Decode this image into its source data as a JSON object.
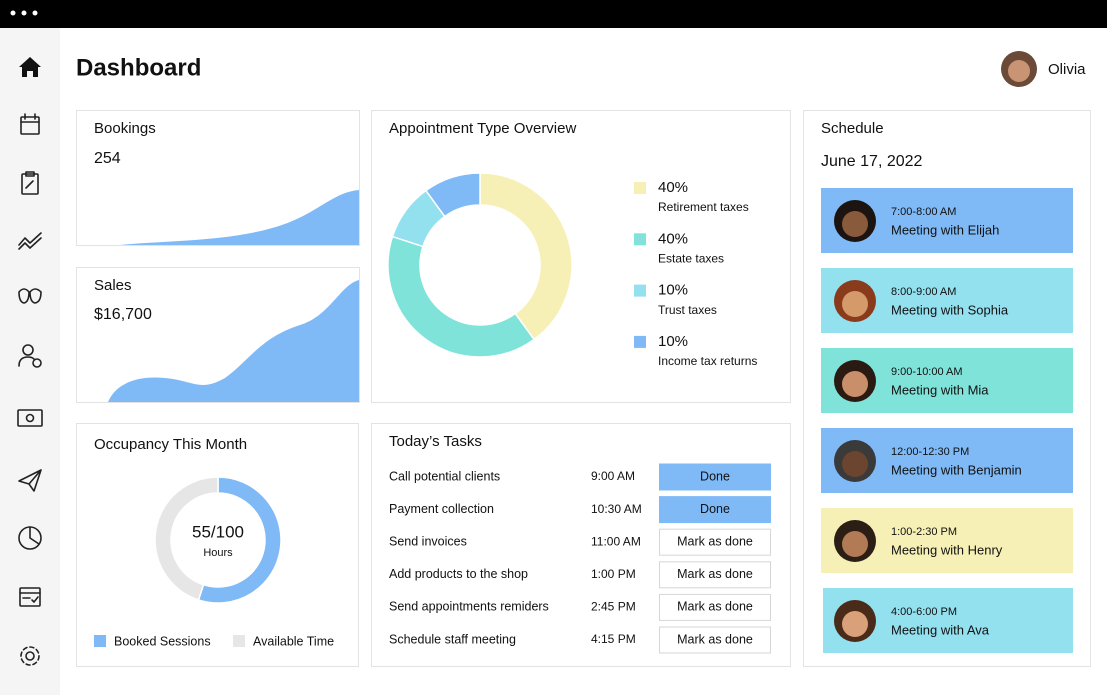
{
  "header": {
    "title": "Dashboard",
    "user": "Olivia"
  },
  "bookings": {
    "title": "Bookings",
    "value": "254"
  },
  "sales": {
    "title": "Sales",
    "value": "$16,700"
  },
  "appointment_overview": {
    "title": "Appointment Type Overview",
    "chart_data": {
      "type": "pie",
      "categories": [
        "Retirement taxes",
        "Estate taxes",
        "Trust taxes",
        "Income tax returns"
      ],
      "values": [
        40,
        40,
        10,
        10
      ],
      "value_labels": [
        "40%",
        "40%",
        "10%",
        "10%"
      ],
      "colors": [
        "#f7f0b6",
        "#7fe3da",
        "#93e0ef",
        "#7fbaf7"
      ]
    }
  },
  "occupancy": {
    "title": "Occupancy This Month",
    "chart_data": {
      "type": "pie",
      "categories": [
        "Booked Sessions",
        "Available Time"
      ],
      "values": [
        55,
        45
      ],
      "colors": [
        "#7fbaf7",
        "#e6e6e6"
      ],
      "center_label": "55/100",
      "center_sublabel": "Hours"
    }
  },
  "tasks": {
    "title": "Today’s Tasks",
    "rows": [
      {
        "task": "Call potential clients",
        "time": "9:00 AM",
        "status": "Done",
        "completed": true
      },
      {
        "task": "Payment collection",
        "time": "10:30 AM",
        "status": "Done",
        "completed": true
      },
      {
        "task": "Send invoices",
        "time": "11:00 AM",
        "status": "Mark as done",
        "completed": false
      },
      {
        "task": "Add products to the shop",
        "time": "1:00 PM",
        "status": "Mark as done",
        "completed": false
      },
      {
        "task": "Send appointments remiders",
        "time": "2:45 PM",
        "status": "Mark as done",
        "completed": false
      },
      {
        "task": "Schedule staff meeting",
        "time": "4:15 PM",
        "status": "Mark as done",
        "completed": false
      }
    ]
  },
  "schedule": {
    "title": "Schedule",
    "date": "June 17, 2022",
    "items": [
      {
        "time": "7:00-8:00 AM",
        "title": "Meeting with Elijah",
        "color": "#7fbaf7"
      },
      {
        "time": "8:00-9:00 AM",
        "title": "Meeting with Sophia",
        "color": "#93e0ef"
      },
      {
        "time": "9:00-10:00 AM",
        "title": "Meeting with Mia",
        "color": "#7fe3da"
      },
      {
        "time": "12:00-12:30 PM",
        "title": "Meeting with Benjamin",
        "color": "#7fbaf7"
      },
      {
        "time": "1:00-2:30 PM",
        "title": "Meeting with Henry",
        "color": "#f7f0b6"
      },
      {
        "time": "4:00-6:00 PM",
        "title": "Meeting with Ava",
        "color": "#93e0ef"
      }
    ]
  }
}
